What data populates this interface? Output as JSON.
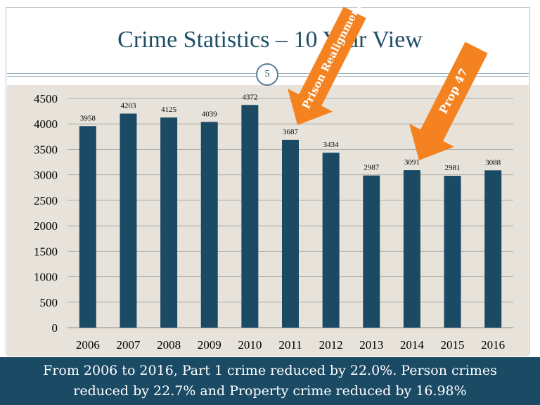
{
  "slide": {
    "title": "Crime Statistics – 10 Year View",
    "page_number": "5"
  },
  "annotations": [
    {
      "label": "Prison Realignment",
      "target_year": "2011",
      "color": "#f58220"
    },
    {
      "label": "Prop 47",
      "target_year": "2014",
      "color": "#f58220"
    }
  ],
  "footer": {
    "line1": "From 2006 to 2016, Part 1 crime reduced by 22.0%. Person crimes",
    "line2": "reduced by 22.7% and Property crime reduced by 16.98%"
  },
  "colors": {
    "bar": "#1b4a65",
    "title": "#1f4e66",
    "plot_background": "#e8e3da",
    "footer_background": "#1b4a65",
    "arrow": "#f58220"
  },
  "chart_data": {
    "type": "bar",
    "categories": [
      "2006",
      "2007",
      "2008",
      "2009",
      "2010",
      "2011",
      "2012",
      "2013",
      "2014",
      "2015",
      "2016"
    ],
    "values": [
      3958,
      4203,
      4125,
      4039,
      4372,
      3687,
      3434,
      2987,
      3091,
      2981,
      3088
    ],
    "ylim": [
      0,
      4500
    ],
    "yticks": [
      0,
      500,
      1000,
      1500,
      2000,
      2500,
      3000,
      3500,
      4000,
      4500
    ],
    "grid": true,
    "data_labels": true
  }
}
